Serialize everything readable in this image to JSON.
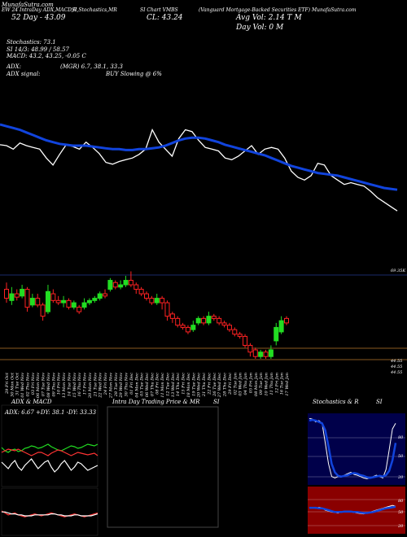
{
  "header": {
    "logo": "MunafaSutra.com",
    "line1_a": "EW 24 IntraDay ADX,MACD,R",
    "line1_b": "SI,Stochastics,MR",
    "line1_c": "SI Chart VMBS",
    "line1_d": "(Vanguard Mortgage-Backed Securities ETF) MunafaSutra.com",
    "line2_a": "52 Day - 43.09",
    "line2_b": "CL: 43.24",
    "line2_c": "Avg Vol: 2.14 T  M",
    "line3_c": "Day Vol: 0   M"
  },
  "indicators": {
    "stochastics": "Stochastics: 73.1",
    "rsi": "SI 14/3: 48.99 / 58.57",
    "macd": "MACD: 43.2, 43.25, -0.05 C",
    "adx": "ADX:",
    "adx_val": "(MGR) 6.7, 38.1, 33.3",
    "adx_signal": "ADX signal:",
    "signal_text": "BUY Slowing @ 6%"
  },
  "chart_data": [
    {
      "type": "line",
      "name": "price-vs-average",
      "series": [
        {
          "name": "Price",
          "color": "#ffffff",
          "values": [
            175,
            176,
            180,
            173,
            176,
            178,
            180,
            190,
            198,
            186,
            175,
            177,
            180,
            172,
            178,
            185,
            195,
            197,
            194,
            192,
            190,
            186,
            180,
            158,
            172,
            180,
            188,
            168,
            158,
            160,
            170,
            178,
            180,
            182,
            190,
            192,
            188,
            182,
            176,
            186,
            180,
            178,
            180,
            190,
            205,
            212,
            215,
            210,
            196,
            198,
            210,
            215,
            220,
            218,
            220,
            222,
            228,
            235,
            240,
            245,
            250
          ]
        },
        {
          "name": "Moving Average",
          "color": "#1144dd",
          "values": [
            152,
            154,
            156,
            158,
            161,
            164,
            167,
            170,
            172,
            174,
            175,
            176,
            176,
            176,
            177,
            178,
            179,
            180,
            180,
            181,
            181,
            180,
            180,
            179,
            178,
            176,
            173,
            170,
            168,
            167,
            167,
            168,
            170,
            172,
            175,
            177,
            179,
            181,
            183,
            185,
            187,
            190,
            193,
            196,
            199,
            201,
            203,
            205,
            207,
            208,
            209,
            210,
            212,
            214,
            216,
            218,
            220,
            222,
            224,
            225,
            226
          ]
        }
      ],
      "ylim": [
        140,
        260
      ]
    },
    {
      "type": "candlestick",
      "name": "daily-candles",
      "x": [
        "29 Fri Oct",
        "30 Mon Oct",
        "31 Tue Oct",
        "01 Wed Nov",
        "02 Thu Nov",
        "03 Fri Nov",
        "06 Mon Nov",
        "07 Tue Nov",
        "08 Wed Nov",
        "09 Thu Nov",
        "10 Fri Nov",
        "13 Mon Nov",
        "14 Tue Nov",
        "15 Wed Nov",
        "16 Thu Nov",
        "17 Fri Nov",
        "20 Mon Nov",
        "21 Tue Nov",
        "22 Wed Nov",
        "24 Fri Nov",
        "27 Mon Nov",
        "28 Tue Nov",
        "29 Wed Nov",
        "30 Thu Nov",
        "01 Fri Dec",
        "04 Mon Dec",
        "05 Tue Dec",
        "06 Wed Dec",
        "07 Thu Dec",
        "08 Fri Dec",
        "11 Mon Dec",
        "12 Tue Dec",
        "13 Wed Dec",
        "14 Thu Dec",
        "15 Fri Dec",
        "18 Mon Dec",
        "19 Tue Dec",
        "20 Wed Dec",
        "21 Thu Dec",
        "22 Fri Dec",
        "26 Tue Dec",
        "27 Wed Dec",
        "28 Thu Dec",
        "29 Fri Dec",
        "02 Tue Jan",
        "03 Wed Jan",
        "04 Thu Jan",
        "05 Fri Jan",
        "08 Mon Jan",
        "09 Tue Jan",
        "10 Wed Jan",
        "11 Thu Jan",
        "12 Fri Jan",
        "16 Tue Jan",
        "17 Wed Jan"
      ],
      "candles": [
        {
          "o": 44.9,
          "c": 44.82,
          "h": 44.96,
          "l": 44.78
        },
        {
          "o": 44.8,
          "c": 44.86,
          "h": 44.92,
          "l": 44.76
        },
        {
          "o": 44.86,
          "c": 44.83,
          "h": 44.9,
          "l": 44.8
        },
        {
          "o": 44.84,
          "c": 44.9,
          "h": 44.94,
          "l": 44.82
        },
        {
          "o": 44.9,
          "c": 44.74,
          "h": 44.92,
          "l": 44.7
        },
        {
          "o": 44.76,
          "c": 44.82,
          "h": 44.86,
          "l": 44.74
        },
        {
          "o": 44.82,
          "c": 44.76,
          "h": 44.86,
          "l": 44.74
        },
        {
          "o": 44.76,
          "c": 44.66,
          "h": 44.78,
          "l": 44.62
        },
        {
          "o": 44.7,
          "c": 44.88,
          "h": 44.94,
          "l": 44.68
        },
        {
          "o": 44.86,
          "c": 44.8,
          "h": 44.9,
          "l": 44.78
        },
        {
          "o": 44.8,
          "c": 44.78,
          "h": 44.84,
          "l": 44.76
        },
        {
          "o": 44.78,
          "c": 44.8,
          "h": 44.84,
          "l": 44.74
        },
        {
          "o": 44.8,
          "c": 44.74,
          "h": 44.82,
          "l": 44.72
        },
        {
          "o": 44.74,
          "c": 44.78,
          "h": 44.8,
          "l": 44.72
        },
        {
          "o": 44.74,
          "c": 44.7,
          "h": 44.76,
          "l": 44.68
        },
        {
          "o": 44.74,
          "c": 44.78,
          "h": 44.82,
          "l": 44.72
        },
        {
          "o": 44.78,
          "c": 44.8,
          "h": 44.82,
          "l": 44.76
        },
        {
          "o": 44.8,
          "c": 44.82,
          "h": 44.84,
          "l": 44.78
        },
        {
          "o": 44.82,
          "c": 44.86,
          "h": 44.88,
          "l": 44.8
        },
        {
          "o": 44.86,
          "c": 44.84,
          "h": 44.9,
          "l": 44.82
        },
        {
          "o": 44.9,
          "c": 44.98,
          "h": 45.0,
          "l": 44.88
        },
        {
          "o": 44.96,
          "c": 44.92,
          "h": 44.98,
          "l": 44.9
        },
        {
          "o": 44.92,
          "c": 44.94,
          "h": 44.98,
          "l": 44.9
        },
        {
          "o": 44.94,
          "c": 44.98,
          "h": 45.02,
          "l": 44.92
        },
        {
          "o": 44.98,
          "c": 44.94,
          "h": 45.06,
          "l": 44.92
        },
        {
          "o": 44.94,
          "c": 44.9,
          "h": 44.96,
          "l": 44.86
        },
        {
          "o": 44.9,
          "c": 44.86,
          "h": 44.92,
          "l": 44.84
        },
        {
          "o": 44.86,
          "c": 44.82,
          "h": 44.88,
          "l": 44.8
        },
        {
          "o": 44.82,
          "c": 44.78,
          "h": 44.84,
          "l": 44.76
        },
        {
          "o": 44.78,
          "c": 44.82,
          "h": 44.86,
          "l": 44.76
        },
        {
          "o": 44.82,
          "c": 44.78,
          "h": 44.84,
          "l": 44.72
        },
        {
          "o": 44.78,
          "c": 44.66,
          "h": 44.8,
          "l": 44.62
        },
        {
          "o": 44.68,
          "c": 44.64,
          "h": 44.7,
          "l": 44.6
        },
        {
          "o": 44.64,
          "c": 44.58,
          "h": 44.66,
          "l": 44.56
        },
        {
          "o": 44.58,
          "c": 44.56,
          "h": 44.6,
          "l": 44.54
        },
        {
          "o": 44.56,
          "c": 44.52,
          "h": 44.58,
          "l": 44.5
        },
        {
          "o": 44.54,
          "c": 44.58,
          "h": 44.62,
          "l": 44.52
        },
        {
          "o": 44.6,
          "c": 44.64,
          "h": 44.66,
          "l": 44.58
        },
        {
          "o": 44.64,
          "c": 44.6,
          "h": 44.66,
          "l": 44.58
        },
        {
          "o": 44.6,
          "c": 44.66,
          "h": 44.7,
          "l": 44.58
        },
        {
          "o": 44.66,
          "c": 44.64,
          "h": 44.68,
          "l": 44.62
        },
        {
          "o": 44.64,
          "c": 44.6,
          "h": 44.66,
          "l": 44.58
        },
        {
          "o": 44.6,
          "c": 44.58,
          "h": 44.62,
          "l": 44.56
        },
        {
          "o": 44.58,
          "c": 44.54,
          "h": 44.6,
          "l": 44.52
        },
        {
          "o": 44.54,
          "c": 44.5,
          "h": 44.56,
          "l": 44.48
        },
        {
          "o": 44.5,
          "c": 44.48,
          "h": 44.52,
          "l": 44.46
        },
        {
          "o": 44.48,
          "c": 44.4,
          "h": 44.5,
          "l": 44.38
        },
        {
          "o": 44.4,
          "c": 44.34,
          "h": 44.42,
          "l": 44.3
        },
        {
          "o": 44.36,
          "c": 44.3,
          "h": 44.38,
          "l": 44.28
        },
        {
          "o": 44.3,
          "c": 44.34,
          "h": 44.36,
          "l": 44.28
        },
        {
          "o": 44.34,
          "c": 44.3,
          "h": 44.36,
          "l": 44.28
        },
        {
          "o": 44.3,
          "c": 44.36,
          "h": 44.4,
          "l": 44.28
        },
        {
          "o": 44.44,
          "c": 44.56,
          "h": 44.6,
          "l": 44.4
        },
        {
          "o": 44.52,
          "c": 44.62,
          "h": 44.66,
          "l": 44.5
        },
        {
          "o": 44.64,
          "c": 44.6,
          "h": 44.66,
          "l": 44.58
        }
      ],
      "ylim": [
        44.2,
        45.1
      ],
      "level_labels": [
        "44.55",
        "44.55",
        "44.55"
      ],
      "vol_label": "69.35K"
    },
    {
      "type": "line",
      "name": "adx-macd",
      "title": "ADX & MACD",
      "label": "ADX: 6.67  +DY: 38.1  -DY: 33.33",
      "series": [
        {
          "name": "+DY",
          "color": "#22dd22",
          "values": [
            48,
            44,
            42,
            45,
            46,
            43,
            44,
            47,
            48,
            50,
            49,
            47,
            48,
            50,
            52,
            49,
            47,
            45,
            44,
            46,
            48,
            50,
            49,
            47,
            48,
            50,
            52,
            51,
            50,
            52
          ]
        },
        {
          "name": "-DY",
          "color": "#ff3333",
          "values": [
            42,
            44,
            46,
            45,
            44,
            46,
            44,
            42,
            40,
            38,
            40,
            42,
            42,
            40,
            38,
            41,
            43,
            45,
            44,
            42,
            40,
            38,
            40,
            42,
            41,
            40,
            39,
            40,
            41,
            38
          ]
        },
        {
          "name": "ADX",
          "color": "#ffffff",
          "values": [
            30,
            26,
            22,
            28,
            32,
            24,
            20,
            26,
            30,
            34,
            28,
            22,
            26,
            30,
            32,
            24,
            18,
            22,
            28,
            32,
            26,
            20,
            24,
            30,
            28,
            24,
            20,
            22,
            24,
            26
          ]
        }
      ],
      "macd": {
        "series": [
          {
            "name": "MACD",
            "color": "#ff3333",
            "values": [
              20,
              18,
              16,
              17,
              18,
              16,
              15,
              14,
              15,
              16,
              17,
              16,
              15,
              16,
              17,
              18,
              17,
              16,
              15,
              14,
              15,
              16,
              17,
              16,
              15,
              14,
              15,
              16,
              17,
              18
            ]
          },
          {
            "name": "Signal",
            "color": "#ffffff",
            "values": [
              19,
              19,
              18,
              17,
              17,
              16,
              16,
              15,
              15,
              15,
              16,
              16,
              16,
              16,
              16,
              17,
              17,
              16,
              16,
              15,
              15,
              15,
              16,
              16,
              15,
              15,
              15,
              15,
              16,
              17
            ]
          }
        ]
      }
    },
    {
      "type": "area",
      "name": "intraday",
      "title": "Intra Day Trading Price  & MR",
      "title_right": "SI"
    },
    {
      "type": "line",
      "name": "stochastics-rsi",
      "title": "Stochastics & R",
      "title_right": "SI",
      "stoch_ticks": [
        "80",
        "50",
        "20"
      ],
      "rsi_ticks": [
        "80",
        "50",
        "20"
      ],
      "series": [
        {
          "name": "%K",
          "color": "#ffffff",
          "values": [
            95,
            94,
            90,
            92,
            88,
            60,
            30,
            12,
            10,
            12,
            11,
            14,
            16,
            18,
            15,
            14,
            12,
            10,
            9,
            10,
            12,
            14,
            12,
            10,
            22,
            50,
            80,
            88
          ]
        },
        {
          "name": "%D",
          "color": "#1144dd",
          "values": [
            92,
            93,
            92,
            90,
            88,
            78,
            55,
            30,
            18,
            13,
            12,
            13,
            14,
            16,
            17,
            16,
            14,
            13,
            11,
            10,
            11,
            12,
            13,
            12,
            14,
            20,
            35,
            60
          ]
        }
      ],
      "rsi_series": [
        {
          "name": "RSI",
          "color": "#ffffff",
          "values": [
            55,
            56,
            54,
            56,
            55,
            50,
            48,
            46,
            45,
            44,
            46,
            48,
            47,
            46,
            45,
            44,
            43,
            42,
            44,
            46,
            48,
            50,
            52,
            54,
            56,
            58,
            60,
            58
          ]
        },
        {
          "name": "MRSI",
          "color": "#1144dd",
          "values": [
            55,
            55,
            55,
            54,
            54,
            52,
            50,
            48,
            46,
            46,
            46,
            47,
            47,
            47,
            46,
            46,
            45,
            44,
            44,
            45,
            46,
            48,
            50,
            52,
            54,
            55,
            56,
            57
          ]
        }
      ]
    }
  ]
}
